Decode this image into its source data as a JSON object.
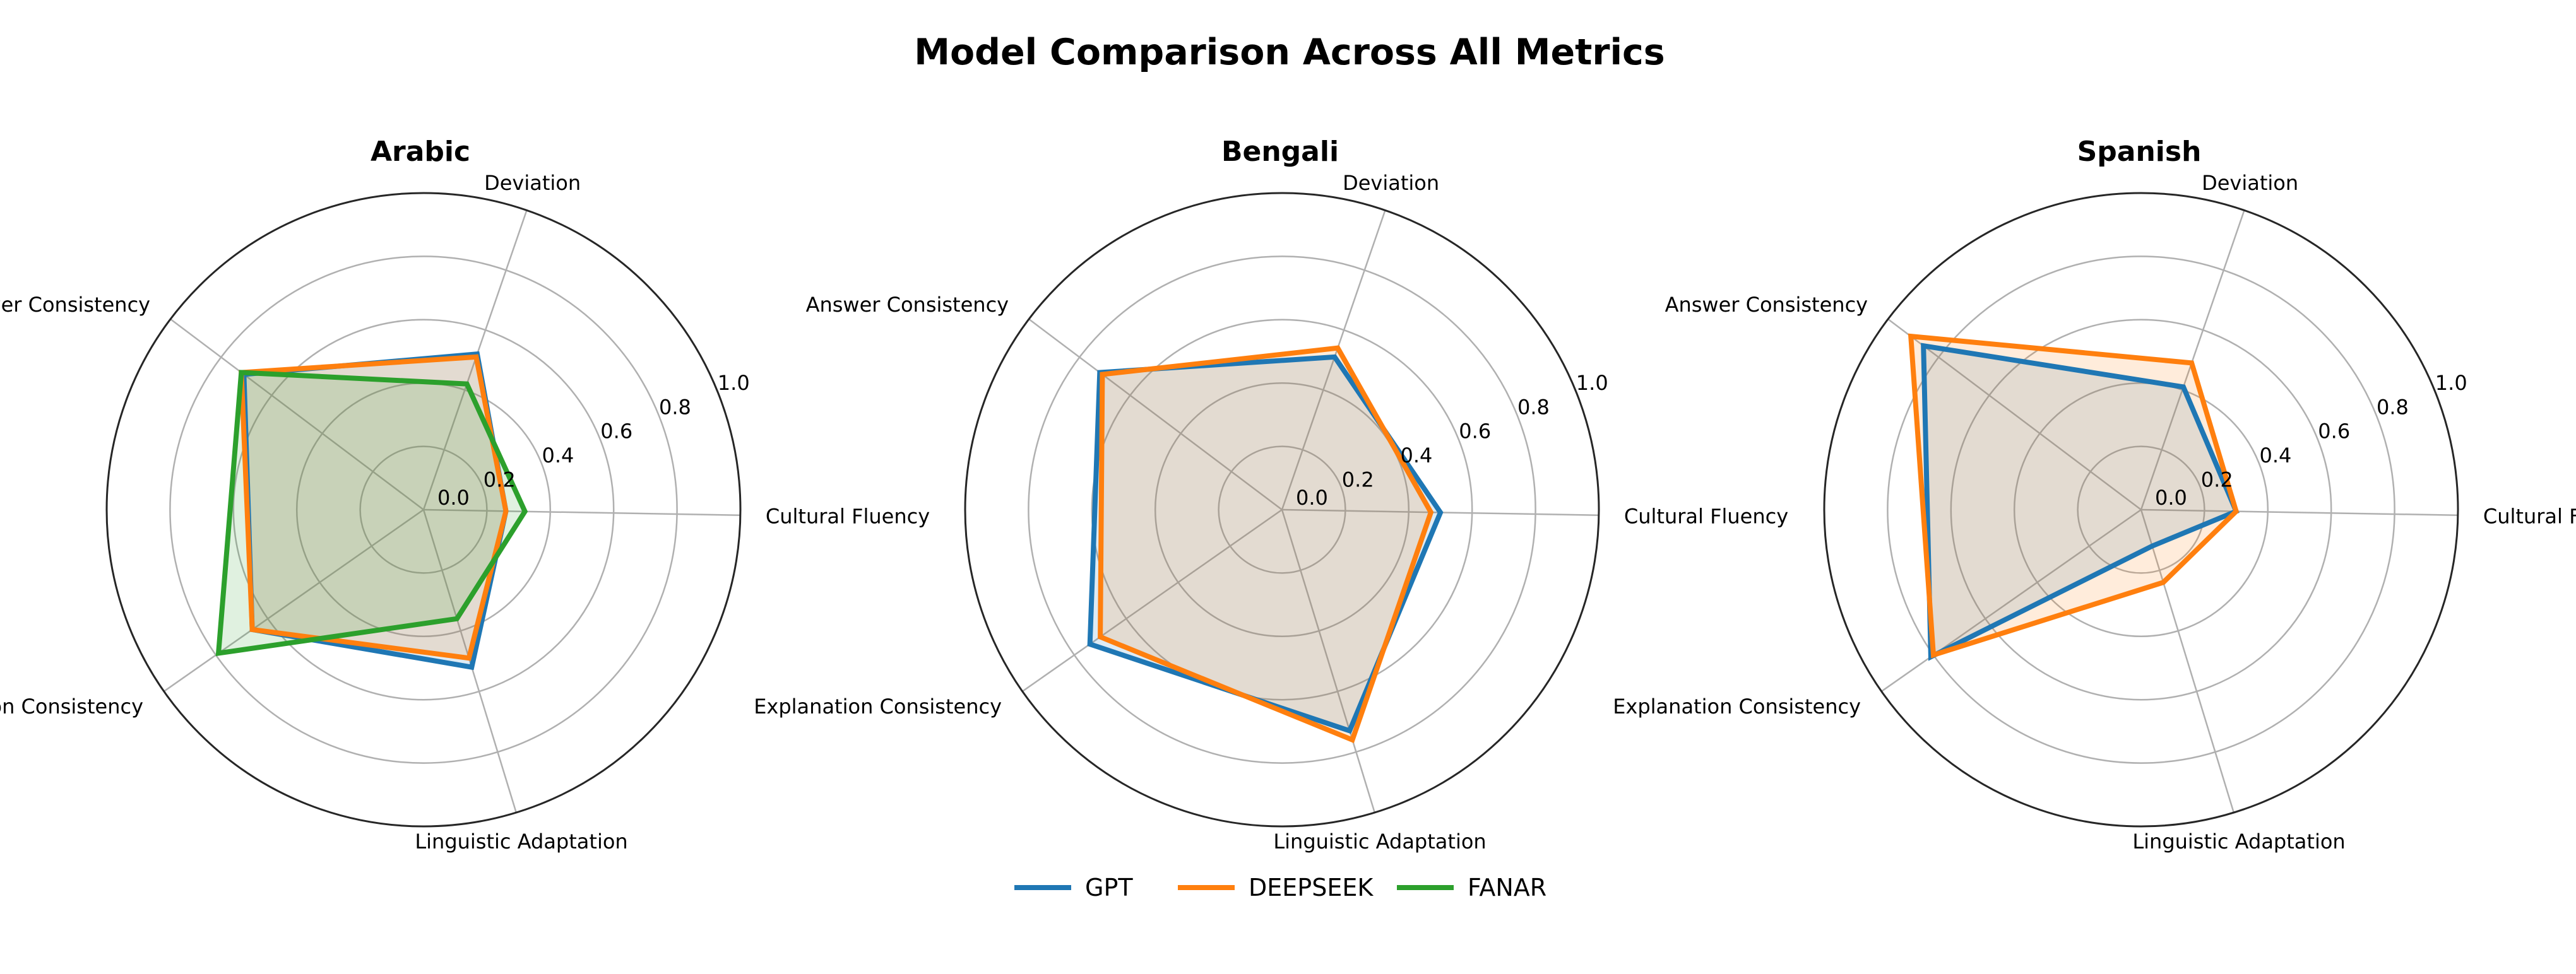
{
  "chart_data": {
    "type": "radar",
    "title": "Model Comparison Across All Metrics",
    "axes": [
      "Cultural Fluency",
      "Deviation",
      "Answer Consistency",
      "Explanation Consistency",
      "Linguistic Adaptation"
    ],
    "r_ticks": [
      "0.0",
      "0.2",
      "0.4",
      "0.6",
      "0.8",
      "1.0"
    ],
    "rlim": [
      0,
      1
    ],
    "legend": {
      "placement": "bottom-center",
      "entries": [
        "GPT",
        "DEEPSEEK",
        "FANAR"
      ]
    },
    "colors": {
      "GPT": "#1f77b4",
      "DEEPSEEK": "#ff7f0e",
      "FANAR": "#2ca02c"
    },
    "charts": [
      {
        "title": "Arabic",
        "series": [
          {
            "name": "GPT",
            "values": [
              0.26,
              0.52,
              0.71,
              0.66,
              0.52
            ]
          },
          {
            "name": "DEEPSEEK",
            "values": [
              0.26,
              0.51,
              0.72,
              0.66,
              0.49
            ]
          },
          {
            "name": "FANAR",
            "values": [
              0.32,
              0.42,
              0.72,
              0.79,
              0.36
            ]
          }
        ]
      },
      {
        "title": "Bengali",
        "series": [
          {
            "name": "GPT",
            "values": [
              0.5,
              0.51,
              0.72,
              0.74,
              0.73
            ]
          },
          {
            "name": "DEEPSEEK",
            "values": [
              0.47,
              0.54,
              0.71,
              0.7,
              0.76
            ]
          }
        ]
      },
      {
        "title": "Spanish",
        "series": [
          {
            "name": "GPT",
            "values": [
              0.3,
              0.41,
              0.86,
              0.81,
              0.12
            ]
          },
          {
            "name": "DEEPSEEK",
            "values": [
              0.3,
              0.49,
              0.91,
              0.8,
              0.24
            ]
          }
        ]
      }
    ]
  }
}
